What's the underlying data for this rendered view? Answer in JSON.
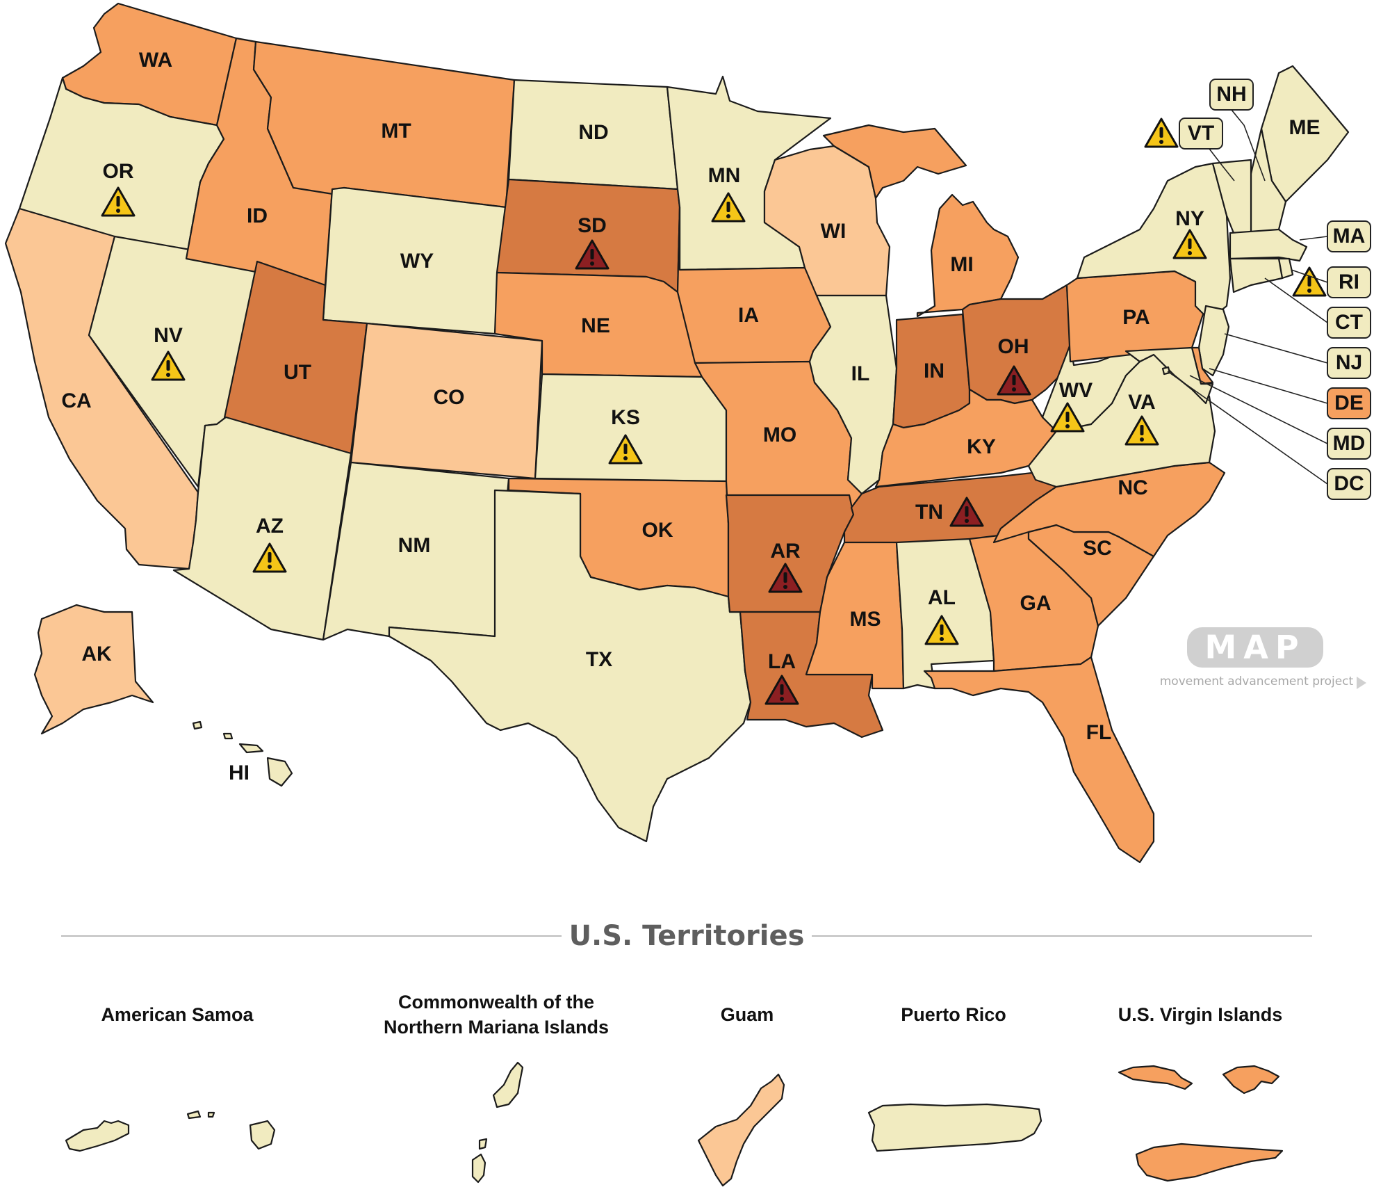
{
  "colors": {
    "lightest": "#f1ebc0",
    "light": "#fbc795",
    "medium": "#f6a05f",
    "dark": "#d67a42",
    "warning_yellow": "#f5c518",
    "warning_red": "#8c1f22",
    "logo_gray": "#d0d0d0",
    "title_gray": "#5e5e5e"
  },
  "states": {
    "WA": {
      "label": "WA",
      "tier": "medium"
    },
    "OR": {
      "label": "OR",
      "tier": "lightest",
      "warning": "yellow"
    },
    "CA": {
      "label": "CA",
      "tier": "light"
    },
    "NV": {
      "label": "NV",
      "tier": "lightest",
      "warning": "yellow"
    },
    "ID": {
      "label": "ID",
      "tier": "medium"
    },
    "MT": {
      "label": "MT",
      "tier": "medium"
    },
    "WY": {
      "label": "WY",
      "tier": "lightest"
    },
    "UT": {
      "label": "UT",
      "tier": "dark"
    },
    "CO": {
      "label": "CO",
      "tier": "light"
    },
    "AZ": {
      "label": "AZ",
      "tier": "lightest",
      "warning": "yellow"
    },
    "NM": {
      "label": "NM",
      "tier": "lightest"
    },
    "ND": {
      "label": "ND",
      "tier": "lightest"
    },
    "SD": {
      "label": "SD",
      "tier": "dark",
      "warning": "red"
    },
    "NE": {
      "label": "NE",
      "tier": "medium"
    },
    "KS": {
      "label": "KS",
      "tier": "lightest",
      "warning": "yellow"
    },
    "OK": {
      "label": "OK",
      "tier": "medium"
    },
    "TX": {
      "label": "TX",
      "tier": "lightest"
    },
    "MN": {
      "label": "MN",
      "tier": "lightest",
      "warning": "yellow"
    },
    "IA": {
      "label": "IA",
      "tier": "medium"
    },
    "MO": {
      "label": "MO",
      "tier": "medium"
    },
    "AR": {
      "label": "AR",
      "tier": "dark",
      "warning": "red"
    },
    "LA": {
      "label": "LA",
      "tier": "dark",
      "warning": "red"
    },
    "WI": {
      "label": "WI",
      "tier": "light"
    },
    "IL": {
      "label": "IL",
      "tier": "lightest"
    },
    "MI": {
      "label": "MI",
      "tier": "medium"
    },
    "IN": {
      "label": "IN",
      "tier": "dark"
    },
    "OH": {
      "label": "OH",
      "tier": "dark",
      "warning": "red"
    },
    "KY": {
      "label": "KY",
      "tier": "medium"
    },
    "TN": {
      "label": "TN",
      "tier": "dark",
      "warning": "red"
    },
    "MS": {
      "label": "MS",
      "tier": "medium"
    },
    "AL": {
      "label": "AL",
      "tier": "lightest",
      "warning": "yellow"
    },
    "GA": {
      "label": "GA",
      "tier": "medium"
    },
    "FL": {
      "label": "FL",
      "tier": "medium"
    },
    "SC": {
      "label": "SC",
      "tier": "medium"
    },
    "NC": {
      "label": "NC",
      "tier": "medium"
    },
    "VA": {
      "label": "VA",
      "tier": "lightest",
      "warning": "yellow"
    },
    "WV": {
      "label": "WV",
      "tier": "lightest",
      "warning": "yellow"
    },
    "PA": {
      "label": "PA",
      "tier": "medium"
    },
    "NY": {
      "label": "NY",
      "tier": "lightest",
      "warning": "yellow"
    },
    "ME": {
      "label": "ME",
      "tier": "lightest"
    },
    "NH": {
      "label": "NH",
      "tier": "lightest"
    },
    "VT": {
      "label": "VT",
      "tier": "lightest",
      "warning": "yellow"
    },
    "MA": {
      "label": "MA",
      "tier": "lightest"
    },
    "RI": {
      "label": "RI",
      "tier": "lightest",
      "warning": "yellow"
    },
    "CT": {
      "label": "CT",
      "tier": "lightest"
    },
    "NJ": {
      "label": "NJ",
      "tier": "lightest"
    },
    "DE": {
      "label": "DE",
      "tier": "medium"
    },
    "MD": {
      "label": "MD",
      "tier": "lightest"
    },
    "DC": {
      "label": "DC",
      "tier": "lightest"
    },
    "AK": {
      "label": "AK",
      "tier": "light"
    },
    "HI": {
      "label": "HI",
      "tier": "lightest"
    }
  },
  "logo": {
    "text": "MAP",
    "tagline": "movement advancement project"
  },
  "territories": {
    "title": "U.S. Territories",
    "american_samoa": {
      "line1": "American Samoa",
      "line2": "",
      "tier": "lightest"
    },
    "cnmi": {
      "line1": "Commonwealth of the",
      "line2": "Northern Mariana Islands",
      "tier": "lightest"
    },
    "guam": {
      "line1": "Guam",
      "line2": "",
      "tier": "light"
    },
    "puerto_rico": {
      "line1": "Puerto Rico",
      "line2": "",
      "tier": "lightest"
    },
    "usvi": {
      "line1": "U.S. Virgin Islands",
      "line2": "",
      "tier": "medium"
    }
  }
}
